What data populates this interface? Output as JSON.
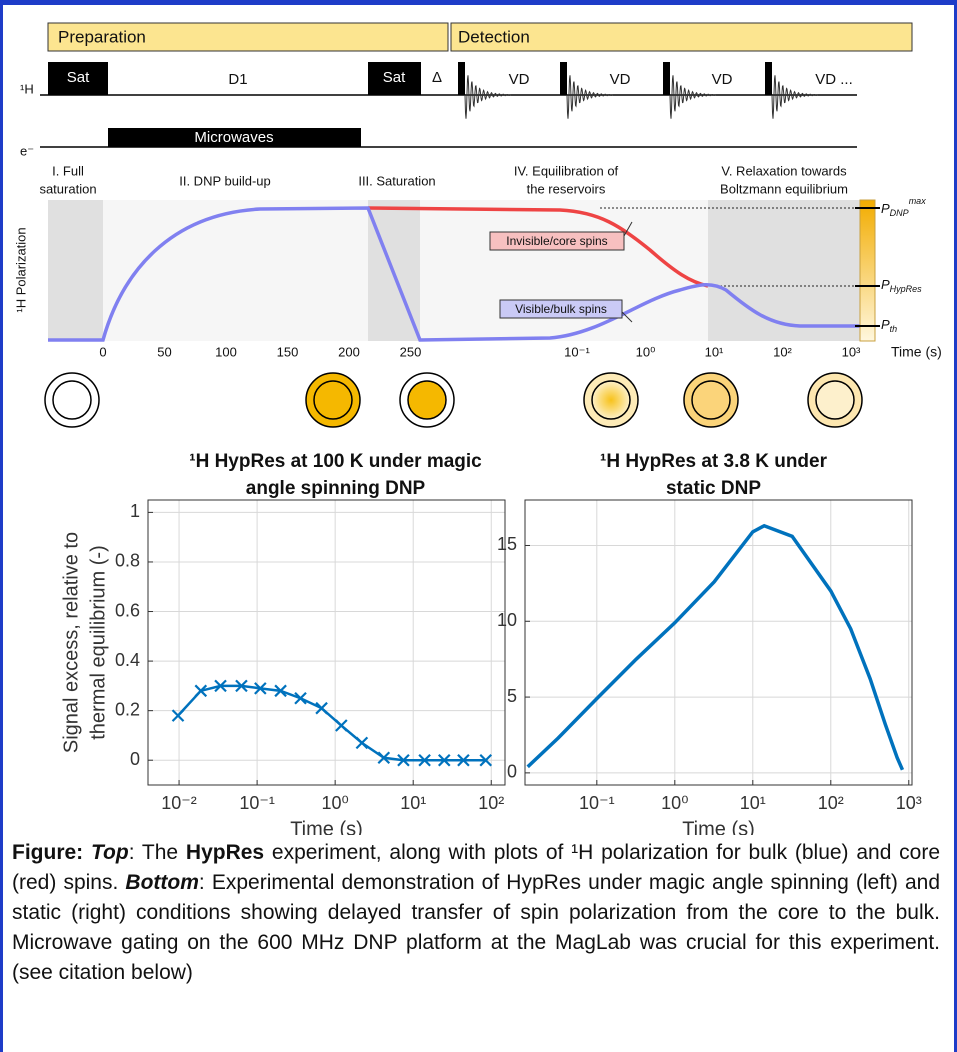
{
  "schematic": {
    "stages": [
      "Preparation",
      "Detection"
    ],
    "channels": [
      "¹H",
      "e⁻"
    ],
    "pulses": [
      "Sat",
      "D1",
      "Sat",
      "Δ",
      "VD",
      "VD",
      "VD",
      "VD ..."
    ],
    "microwaves": "Microwaves",
    "phases": [
      [
        "I. Full",
        "saturation"
      ],
      [
        "II. DNP build-up"
      ],
      [
        "III. Saturation"
      ],
      [
        "IV. Equilibration of",
        "the reservoirs"
      ],
      [
        "V. Relaxation towards",
        "Boltzmann equilibrium"
      ]
    ],
    "y_label": "¹H Polarization",
    "x_label": "Time (s)",
    "linear_ticks": [
      0,
      50,
      100,
      150,
      200,
      250
    ],
    "log_ticks": [
      {
        "value": 0.1,
        "label": "10⁻¹"
      },
      {
        "value": 1,
        "label": "10⁰"
      },
      {
        "value": 10,
        "label": "10¹"
      },
      {
        "value": 100,
        "label": "10²"
      },
      {
        "value": 1000,
        "label": "10³"
      }
    ],
    "curves": [
      "Invisible/core spins",
      "Visible/bulk spins"
    ],
    "levels": [
      {
        "base": "P",
        "sub": "DNP",
        "sup": "max"
      },
      {
        "base": "P",
        "sub": "HypRes"
      },
      {
        "base": "P",
        "sub": "th"
      }
    ]
  },
  "chart_data": [
    {
      "type": "line",
      "title": [
        "¹H HypRes at 100 K under magic",
        "angle spinning DNP"
      ],
      "y_label": [
        "Signal excess, relative to",
        "thermal equilibrium (-)"
      ],
      "x_label": "Time (s)",
      "x": [
        0.0097,
        0.019,
        0.034,
        0.063,
        0.11,
        0.2,
        0.36,
        0.67,
        1.2,
        2.2,
        4.2,
        7.5,
        14,
        25,
        44,
        85
      ],
      "series": [
        {
          "color": "#0072bd",
          "marker": "x",
          "values": [
            0.18,
            0.28,
            0.3,
            0.3,
            0.29,
            0.28,
            0.25,
            0.21,
            0.14,
            0.07,
            0.01,
            0,
            0,
            0,
            0,
            0
          ]
        }
      ],
      "xlog": true,
      "xlim": [
        0.004,
        150
      ],
      "ylim": [
        -0.1,
        1.05
      ],
      "xticks": [
        {
          "value": 0.01,
          "label": "10⁻²"
        },
        {
          "value": 0.1,
          "label": "10⁻¹"
        },
        {
          "value": 1,
          "label": "10⁰"
        },
        {
          "value": 10,
          "label": "10¹"
        },
        {
          "value": 100,
          "label": "10²"
        }
      ],
      "yticks": [
        0,
        0.2,
        0.4,
        0.6,
        0.8,
        1
      ],
      "grid": true
    },
    {
      "type": "line",
      "title": [
        "¹H HypRes at 3.8 K under",
        "static DNP"
      ],
      "x_label": "Time (s)",
      "x": [
        0.013,
        0.032,
        0.1,
        0.32,
        1,
        3.2,
        10,
        14,
        32,
        100,
        180,
        320,
        500,
        710,
        830
      ],
      "series": [
        {
          "color": "#0072bd",
          "values": [
            0.4,
            2.3,
            4.9,
            7.5,
            9.9,
            12.6,
            15.9,
            16.3,
            15.6,
            12,
            9.5,
            6.2,
            3.2,
            1,
            0.2
          ]
        }
      ],
      "xlog": true,
      "xlim": [
        0.012,
        1100
      ],
      "ylim": [
        -0.8,
        18
      ],
      "xticks": [
        {
          "value": 0.1,
          "label": "10⁻¹"
        },
        {
          "value": 1,
          "label": "10⁰"
        },
        {
          "value": 10,
          "label": "10¹"
        },
        {
          "value": 100,
          "label": "10²"
        },
        {
          "value": 1000,
          "label": "10³"
        }
      ],
      "yticks": [
        0,
        5,
        10,
        15
      ],
      "grid": true
    }
  ],
  "caption": [
    {
      "text": "Figure:",
      "style": "bold"
    },
    {
      "text": " ",
      "style": "normal"
    },
    {
      "text": "Top",
      "style": "bold-italic"
    },
    {
      "text": ": The ",
      "style": "normal"
    },
    {
      "text": "HypRes",
      "style": "bold"
    },
    {
      "text": " experiment, along with plots of ¹H polarization for bulk (blue) and core (red) spins.  ",
      "style": "normal"
    },
    {
      "text": "Bottom",
      "style": "bold-italic"
    },
    {
      "text": ": Experimental demonstration of HypRes under magic angle spinning (left) and static (right) conditions showing delayed transfer of spin polarization from the core to the bulk. Microwave gating on the 600 MHz DNP platform at the MagLab was crucial for this experiment.  (see citation below)",
      "style": "normal"
    }
  ]
}
